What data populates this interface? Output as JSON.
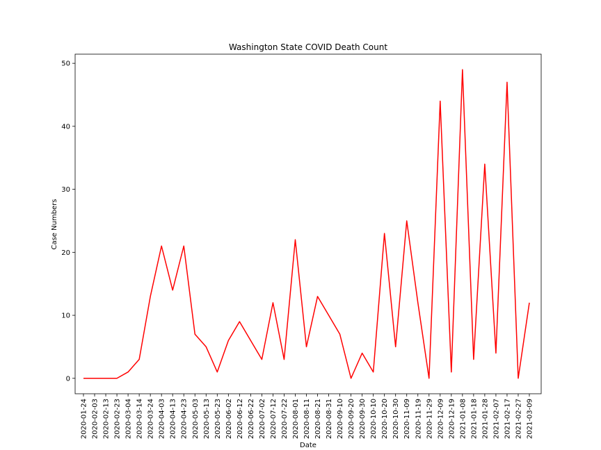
{
  "chart_data": {
    "type": "line",
    "title": "Washington State COVID Death Count",
    "x_label": "Date",
    "y_label": "Case Numbers",
    "categories": [
      "2020-01-24",
      "2020-02-03",
      "2020-02-13",
      "2020-02-23",
      "2020-03-04",
      "2020-03-14",
      "2020-03-24",
      "2020-04-03",
      "2020-04-13",
      "2020-04-23",
      "2020-05-03",
      "2020-05-13",
      "2020-05-23",
      "2020-06-02",
      "2020-06-12",
      "2020-06-22",
      "2020-07-02",
      "2020-07-12",
      "2020-07-22",
      "2020-08-01",
      "2020-08-11",
      "2020-08-21",
      "2020-08-31",
      "2020-09-10",
      "2020-09-20",
      "2020-09-30",
      "2020-10-10",
      "2020-10-20",
      "2020-10-30",
      "2020-11-09",
      "2020-11-19",
      "2020-11-29",
      "2020-12-09",
      "2020-12-19",
      "2021-01-08",
      "2021-01-18",
      "2021-01-28",
      "2021-02-07",
      "2021-02-17",
      "2021-02-27",
      "2021-03-09"
    ],
    "series": [
      {
        "color": "#ff0000",
        "values": [
          0,
          0,
          0,
          0,
          1,
          3,
          13,
          21,
          14,
          21,
          7,
          5,
          1,
          6,
          9,
          6,
          3,
          12,
          3,
          22,
          5,
          13,
          10,
          7,
          0,
          4,
          1,
          23,
          5,
          25,
          12,
          0,
          44,
          1,
          49,
          3,
          34,
          4,
          47,
          0,
          12
        ]
      }
    ],
    "ylim": [
      -2.45,
      51.45
    ],
    "yticks": [
      0,
      10,
      20,
      30,
      40,
      50
    ],
    "grid": false
  }
}
